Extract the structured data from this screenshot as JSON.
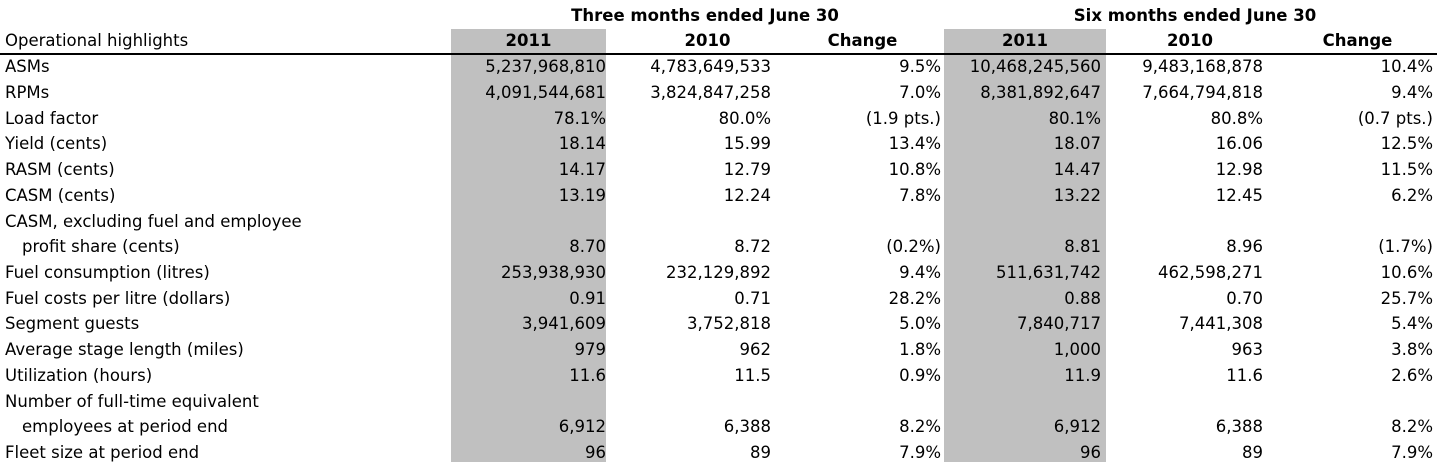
{
  "headers": {
    "group_q": "Three months ended June 30",
    "group_6m": "Six months ended June 30",
    "label_col": "Operational highlights",
    "q_2011": "2011",
    "q_2010": "2010",
    "q_change": "Change",
    "m_2011": "2011",
    "m_2010": "2010",
    "m_change": "Change"
  },
  "rows": [
    {
      "label": "ASMs",
      "q2011": "5,237,968,810",
      "q2010": "4,783,649,533",
      "qchg": "9.5%",
      "m2011": "10,468,245,560",
      "m2010": "9,483,168,878",
      "mchg": "10.4%"
    },
    {
      "label": "RPMs",
      "q2011": "4,091,544,681",
      "q2010": "3,824,847,258",
      "qchg": "7.0%",
      "m2011": "8,381,892,647",
      "m2010": "7,664,794,818",
      "mchg": "9.4%"
    },
    {
      "label": "Load factor",
      "q2011": "78.1%",
      "q2010": "80.0%",
      "qchg": "(1.9 pts.)",
      "m2011": "80.1%",
      "m2010": "80.8%",
      "mchg": "(0.7 pts.)"
    },
    {
      "label": "Yield (cents)",
      "q2011": "18.14",
      "q2010": "15.99",
      "qchg": "13.4%",
      "m2011": "18.07",
      "m2010": "16.06",
      "mchg": "12.5%"
    },
    {
      "label": "RASM (cents)",
      "q2011": "14.17",
      "q2010": "12.79",
      "qchg": "10.8%",
      "m2011": "14.47",
      "m2010": "12.98",
      "mchg": "11.5%"
    },
    {
      "label": "CASM (cents)",
      "q2011": "13.19",
      "q2010": "12.24",
      "qchg": "7.8%",
      "m2011": "13.22",
      "m2010": "12.45",
      "mchg": "6.2%"
    },
    {
      "label": "CASM, excluding fuel and employee",
      "label2": "profit share (cents)",
      "q2011": "8.70",
      "q2010": "8.72",
      "qchg": "(0.2%)",
      "m2011": "8.81",
      "m2010": "8.96",
      "mchg": "(1.7%)"
    },
    {
      "label": "Fuel consumption (litres)",
      "q2011": "253,938,930",
      "q2010": "232,129,892",
      "qchg": "9.4%",
      "m2011": "511,631,742",
      "m2010": "462,598,271",
      "mchg": "10.6%"
    },
    {
      "label": "Fuel costs per litre (dollars)",
      "q2011": "0.91",
      "q2010": "0.71",
      "qchg": "28.2%",
      "m2011": "0.88",
      "m2010": "0.70",
      "mchg": "25.7%"
    },
    {
      "label": "Segment guests",
      "q2011": "3,941,609",
      "q2010": "3,752,818",
      "qchg": "5.0%",
      "m2011": "7,840,717",
      "m2010": "7,441,308",
      "mchg": "5.4%"
    },
    {
      "label": "Average stage length (miles)",
      "q2011": "979",
      "q2010": "962",
      "qchg": "1.8%",
      "m2011": "1,000",
      "m2010": "963",
      "mchg": "3.8%"
    },
    {
      "label": "Utilization (hours)",
      "q2011": "11.6",
      "q2010": "11.5",
      "qchg": "0.9%",
      "m2011": "11.9",
      "m2010": "11.6",
      "mchg": "2.6%"
    },
    {
      "label": "Number of full-time equivalent",
      "label2": "employees at period end",
      "q2011": "6,912",
      "q2010": "6,388",
      "qchg": "8.2%",
      "m2011": "6,912",
      "m2010": "6,388",
      "mchg": "8.2%"
    },
    {
      "label": "Fleet size at period end",
      "q2011": "96",
      "q2010": "89",
      "qchg": "7.9%",
      "m2011": "96",
      "m2010": "89",
      "mchg": "7.9%"
    }
  ]
}
